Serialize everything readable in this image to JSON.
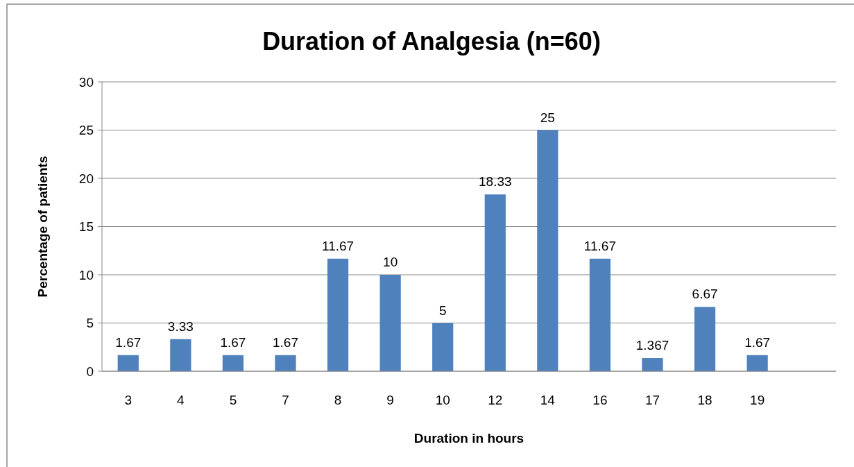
{
  "chart_data": {
    "type": "bar",
    "title": "Duration of Analgesia (n=60)",
    "xlabel": "Duration in hours",
    "ylabel": "Percentage of patients",
    "categories": [
      "3",
      "4",
      "5",
      "7",
      "8",
      "9",
      "10",
      "12",
      "14",
      "16",
      "17",
      "18",
      "19",
      null
    ],
    "values": [
      1.67,
      3.33,
      1.67,
      1.67,
      11.67,
      10,
      5,
      18.33,
      25,
      11.67,
      1.367,
      6.67,
      1.67,
      null
    ],
    "color": "#4f81bd",
    "ylim": [
      0,
      30
    ],
    "yticks": [
      0,
      5,
      10,
      15,
      20,
      25,
      30
    ],
    "grid": "y",
    "data_labels": true
  }
}
